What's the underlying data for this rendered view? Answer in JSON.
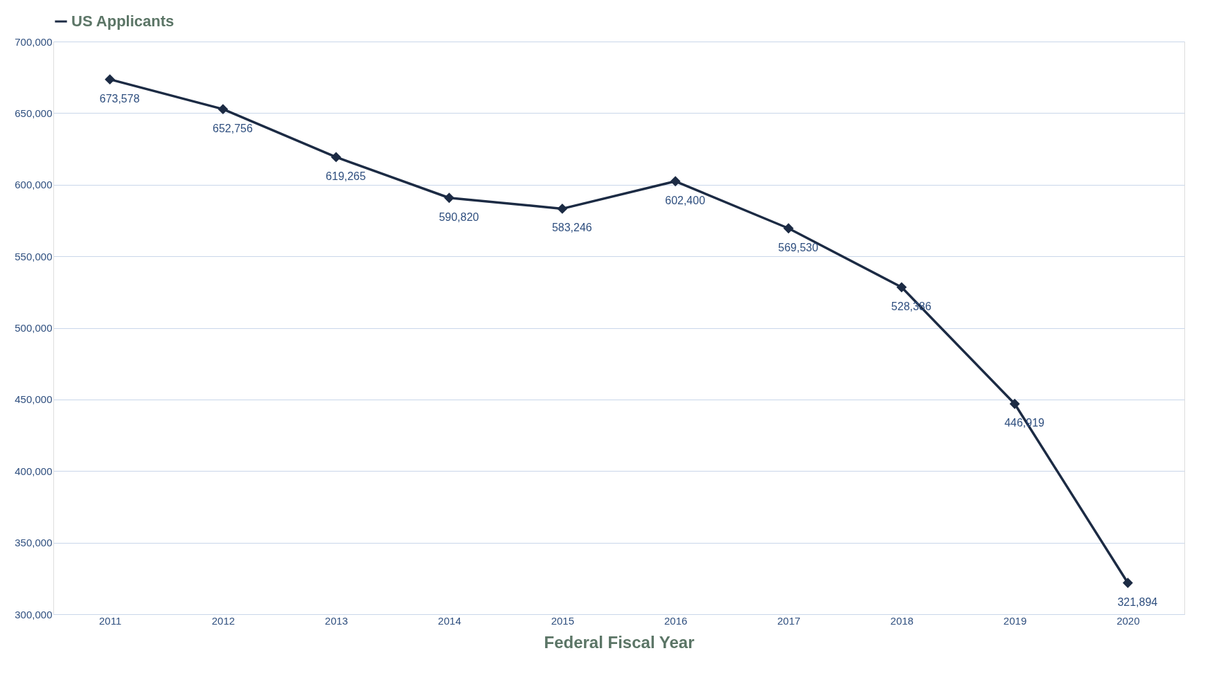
{
  "chart_data": {
    "type": "line",
    "categories": [
      "2011",
      "2012",
      "2013",
      "2014",
      "2015",
      "2016",
      "2017",
      "2018",
      "2019",
      "2020"
    ],
    "series": [
      {
        "name": "US Applicants",
        "color": "#1c2b44",
        "values": [
          673578,
          652756,
          619265,
          590820,
          583246,
          602400,
          569530,
          528386,
          446919,
          321894
        ],
        "value_labels": [
          "673,578",
          "652,756",
          "619,265",
          "590,820",
          "583,246",
          "602,400",
          "569,530",
          "528,386",
          "446,919",
          "321,894"
        ]
      }
    ],
    "xlabel": "Federal Fiscal Year",
    "ylim": [
      300000,
      700000
    ],
    "yticks": [
      {
        "value": 300000,
        "label": "300,000"
      },
      {
        "value": 350000,
        "label": "350,000"
      },
      {
        "value": 400000,
        "label": "400,000"
      },
      {
        "value": 450000,
        "label": "450,000"
      },
      {
        "value": 500000,
        "label": "500,000"
      },
      {
        "value": 550000,
        "label": "550,000"
      },
      {
        "value": 600000,
        "label": "600,000"
      },
      {
        "value": 650000,
        "label": "650,000"
      },
      {
        "value": 700000,
        "label": "700,000"
      }
    ],
    "grid": "y",
    "legend": "top",
    "marker": "diamond",
    "line_style": "solid"
  }
}
